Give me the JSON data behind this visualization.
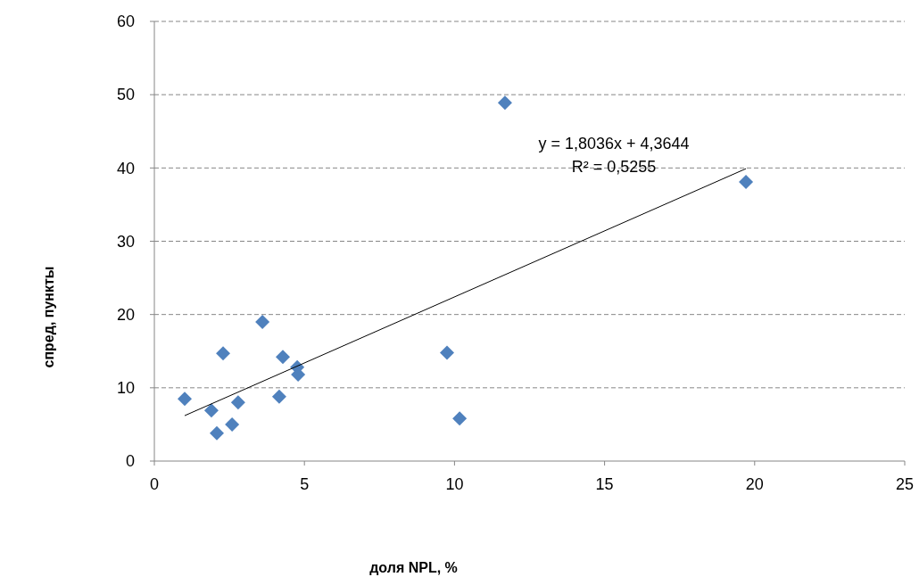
{
  "chart_data": {
    "type": "scatter",
    "xlabel": "доля NPL, %",
    "ylabel": "спред, пункты",
    "xlim": [
      0,
      25
    ],
    "xticks": [
      0,
      5,
      10,
      15,
      20,
      25
    ],
    "ylim": [
      0,
      60
    ],
    "yticks": [
      0,
      10,
      20,
      30,
      40,
      50,
      60
    ],
    "grid": "y",
    "marker": "diamond",
    "annotations": [
      "y = 1,8036x + 4,3644",
      "R² = 0,5255"
    ],
    "series": [
      {
        "color": "#4f81bd",
        "x": [
          1.01,
          1.9,
          2.08,
          2.29,
          2.59,
          2.79,
          3.6,
          4.16,
          4.28,
          4.76,
          4.79,
          9.75,
          10.17,
          11.68,
          19.71
        ],
        "values": [
          8.5,
          6.9,
          3.8,
          14.7,
          5.0,
          8.0,
          19.0,
          8.8,
          14.2,
          12.8,
          11.8,
          14.8,
          5.8,
          48.9,
          38.1
        ]
      },
      {
        "type": "line",
        "color": "#000000",
        "marker": "none",
        "x": [
          1.01,
          19.71
        ],
        "values": [
          6.2,
          39.9
        ]
      }
    ]
  }
}
